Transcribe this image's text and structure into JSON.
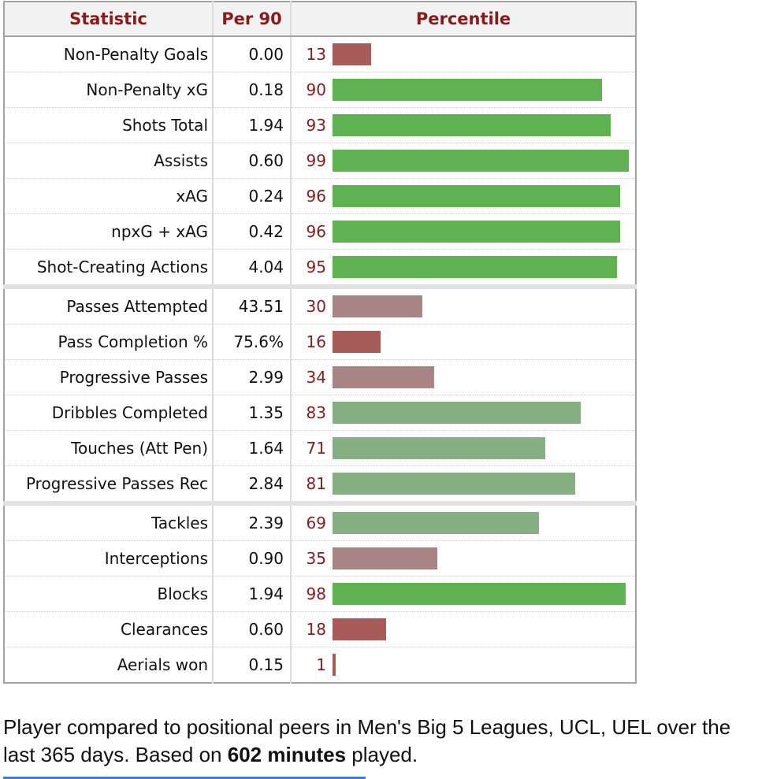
{
  "table": {
    "headers": [
      "Statistic",
      "Per 90",
      "Percentile"
    ],
    "groups": [
      [
        {
          "stat": "Non-Penalty Goals",
          "per90": "0.00",
          "pct": 13
        },
        {
          "stat": "Non-Penalty xG",
          "per90": "0.18",
          "pct": 90
        },
        {
          "stat": "Shots Total",
          "per90": "1.94",
          "pct": 93
        },
        {
          "stat": "Assists",
          "per90": "0.60",
          "pct": 99
        },
        {
          "stat": "xAG",
          "per90": "0.24",
          "pct": 96
        },
        {
          "stat": "npxG + xAG",
          "per90": "0.42",
          "pct": 96
        },
        {
          "stat": "Shot-Creating Actions",
          "per90": "4.04",
          "pct": 95
        }
      ],
      [
        {
          "stat": "Passes Attempted",
          "per90": "43.51",
          "pct": 30
        },
        {
          "stat": "Pass Completion %",
          "per90": "75.6%",
          "pct": 16
        },
        {
          "stat": "Progressive Passes",
          "per90": "2.99",
          "pct": 34
        },
        {
          "stat": "Dribbles Completed",
          "per90": "1.35",
          "pct": 83
        },
        {
          "stat": "Touches (Att Pen)",
          "per90": "1.64",
          "pct": 71
        },
        {
          "stat": "Progressive Passes Rec",
          "per90": "2.84",
          "pct": 81
        }
      ],
      [
        {
          "stat": "Tackles",
          "per90": "2.39",
          "pct": 69
        },
        {
          "stat": "Interceptions",
          "per90": "0.90",
          "pct": 35
        },
        {
          "stat": "Blocks",
          "per90": "1.94",
          "pct": 98
        },
        {
          "stat": "Clearances",
          "per90": "0.60",
          "pct": 18
        },
        {
          "stat": "Aerials won",
          "per90": "0.15",
          "pct": 1
        }
      ]
    ]
  },
  "caption": {
    "text_before": "Player compared to positional peers in Men's Big 5 Leagues, UCL, UEL over the last 365 days. Based on ",
    "bold": "602 minutes",
    "text_after": " played."
  },
  "colors": {
    "header_text": "#8b1a1a",
    "pct_text": "#8b1a1a",
    "bar_high": "#60b152",
    "bar_midhigh": "#86b083",
    "bar_midlow": "#a88484",
    "bar_low": "#a75c5a"
  }
}
